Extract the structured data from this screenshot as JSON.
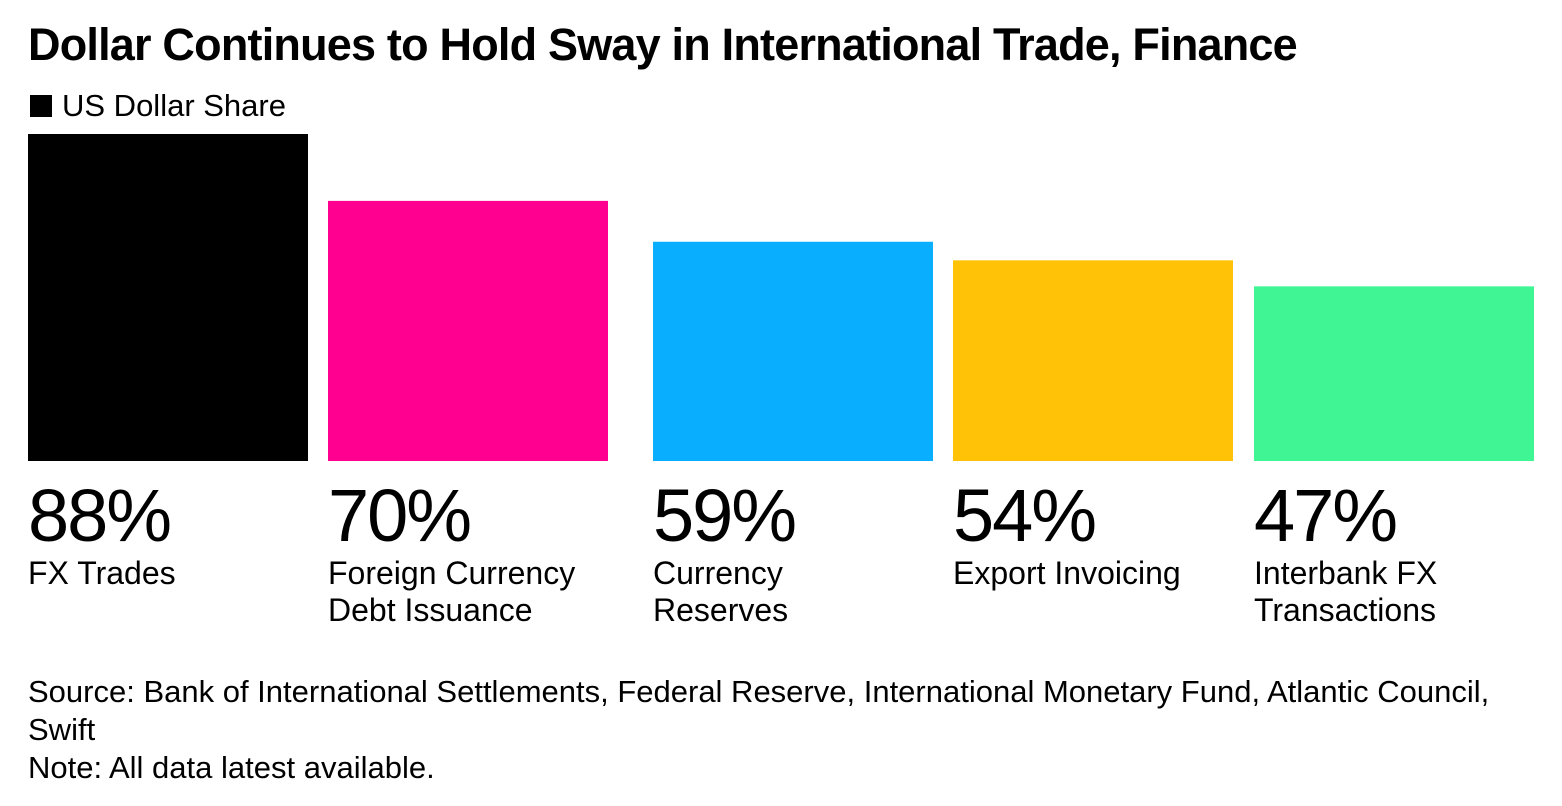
{
  "chart_data": {
    "type": "bar",
    "title": "Dollar Continues to Hold Sway in International Trade, Finance",
    "legend": [
      {
        "name": "US Dollar Share",
        "color": "#000000"
      }
    ],
    "categories": [
      [
        "FX Trades"
      ],
      [
        "Foreign Currency",
        "Debt Issuance"
      ],
      [
        "Currency",
        "Reserves"
      ],
      [
        "Export Invoicing"
      ],
      [
        "Interbank FX",
        "Transactions"
      ]
    ],
    "values": [
      88,
      70,
      59,
      54,
      47
    ],
    "value_labels": [
      "88%",
      "70%",
      "59%",
      "54%",
      "47%"
    ],
    "colors": [
      "#000000",
      "#ff0090",
      "#0aaeff",
      "#ffc206",
      "#3ff594"
    ],
    "ylim": [
      0,
      88
    ],
    "xlabel": "",
    "ylabel": "",
    "grid": false,
    "legend_position": "top-left"
  },
  "footer": {
    "source": "Source: Bank of International Settlements, Federal Reserve, International Monetary Fund, Atlantic Council, Swift",
    "note": "Note: All data latest available."
  }
}
